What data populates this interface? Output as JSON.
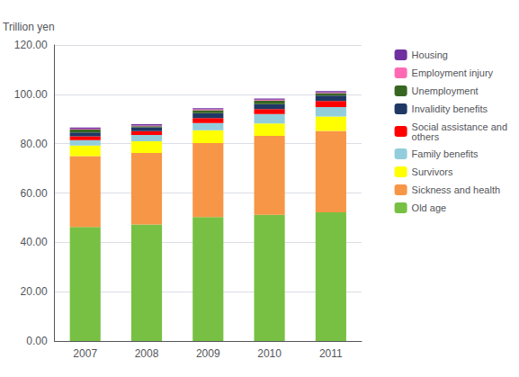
{
  "chart_data": {
    "type": "bar",
    "stacked": true,
    "categories": [
      "2007",
      "2008",
      "2009",
      "2010",
      "2011"
    ],
    "series": [
      {
        "name": "Old age",
        "color": "#77c043",
        "values": [
          46.2,
          47.2,
          50.2,
          51.2,
          52.2
        ]
      },
      {
        "name": "Sickness and health",
        "color": "#f79646",
        "values": [
          28.8,
          29.0,
          30.0,
          32.0,
          33.0
        ]
      },
      {
        "name": "Survivors",
        "color": "#ffff00",
        "values": [
          4.2,
          4.8,
          5.2,
          5.0,
          5.8
        ]
      },
      {
        "name": "Family benefits",
        "color": "#92cddc",
        "values": [
          2.2,
          2.5,
          3.0,
          3.8,
          3.8
        ]
      },
      {
        "name": "Social assistance and\nothers",
        "color": "#ff0000",
        "values": [
          1.6,
          1.6,
          2.0,
          2.0,
          2.5
        ]
      },
      {
        "name": "Invalidity benefits",
        "color": "#1f3864",
        "values": [
          1.5,
          1.5,
          2.0,
          2.0,
          2.2
        ]
      },
      {
        "name": "Unemployment",
        "color": "#376623",
        "values": [
          1.2,
          0.5,
          1.2,
          1.5,
          1.0
        ]
      },
      {
        "name": "Employment injury",
        "color": "#ff69b4",
        "values": [
          0.3,
          0.3,
          0.3,
          0.3,
          0.3
        ]
      },
      {
        "name": "Housing",
        "color": "#7030a0",
        "values": [
          0.5,
          0.5,
          0.5,
          0.5,
          0.5
        ]
      }
    ],
    "ylabel": "Trillion yen",
    "ylim": [
      0,
      120
    ],
    "yticks": [
      {
        "value": 0,
        "label": "0.00"
      },
      {
        "value": 20,
        "label": "20.00"
      },
      {
        "value": 40,
        "label": "40.00"
      },
      {
        "value": 60,
        "label": "60.00"
      },
      {
        "value": 80,
        "label": "80.00"
      },
      {
        "value": 100,
        "label": "100.00"
      },
      {
        "value": 120,
        "label": "120.00"
      }
    ],
    "grid": true,
    "legend": "right"
  }
}
